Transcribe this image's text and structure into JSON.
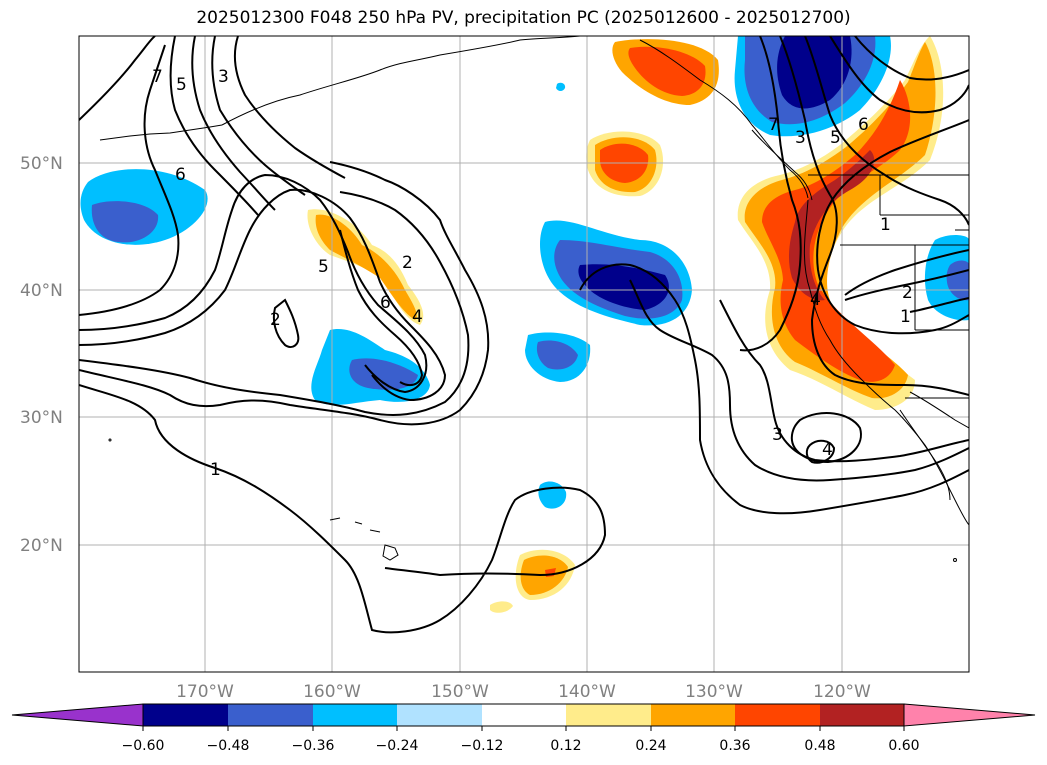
{
  "title": "2025012300 F048 250 hPa PV, precipitation PC (2025012600 - 2025012700)",
  "map": {
    "lat_labels": [
      "50°N",
      "40°N",
      "30°N",
      "20°N"
    ],
    "lon_labels": [
      "170°W",
      "160°W",
      "150°W",
      "140°W",
      "130°W",
      "120°W"
    ],
    "contour_labels": [
      "1",
      "2",
      "3",
      "4",
      "5",
      "6",
      "7"
    ],
    "colors": {
      "coast": "#000000",
      "grid": "#b0b0b0",
      "contour": "#000000"
    }
  },
  "colorbar": {
    "ticks": [
      "−0.60",
      "−0.48",
      "−0.36",
      "−0.24",
      "−0.12",
      "0.12",
      "0.24",
      "0.36",
      "0.48",
      "0.60"
    ],
    "colors": [
      "#9932cc",
      "#00008b",
      "#3a5fcd",
      "#00bfff",
      "#b0e2ff",
      "#ffffff",
      "#ffec8b",
      "#ffa500",
      "#ff4500",
      "#b22222",
      "#ff82ab"
    ]
  }
}
